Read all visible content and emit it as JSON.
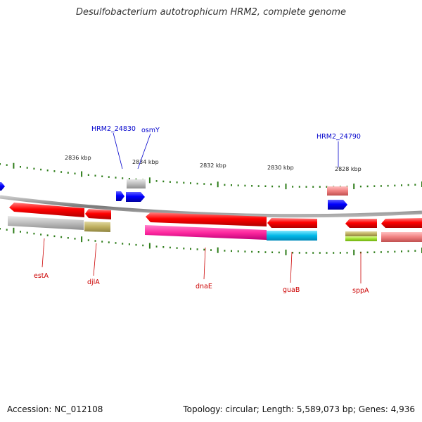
{
  "title": "Desulfobacterium autotrophicum HRM2, complete genome",
  "footer": {
    "accession": "Accession: NC_012108",
    "summary": "Topology: circular; Length: 5,589,073 bp; Genes: 4,936"
  },
  "scale_labels": [
    "2836 kbp",
    "2834 kbp",
    "2832 kbp",
    "2830 kbp",
    "2828 kbp"
  ],
  "top_gene_labels": [
    "HRM2_24830",
    "osmY",
    "HRM2_24790"
  ],
  "bottom_gene_labels": [
    "estA",
    "djlA",
    "dnaE",
    "guaB",
    "sppA"
  ],
  "colors": {
    "backbone": "#8a8a8a",
    "tick": "#2e7d1a",
    "forward_gene": "#0000e0",
    "reverse_gene": "#e00000",
    "top_label": "#0000cc",
    "bottom_label": "#cc0000"
  }
}
